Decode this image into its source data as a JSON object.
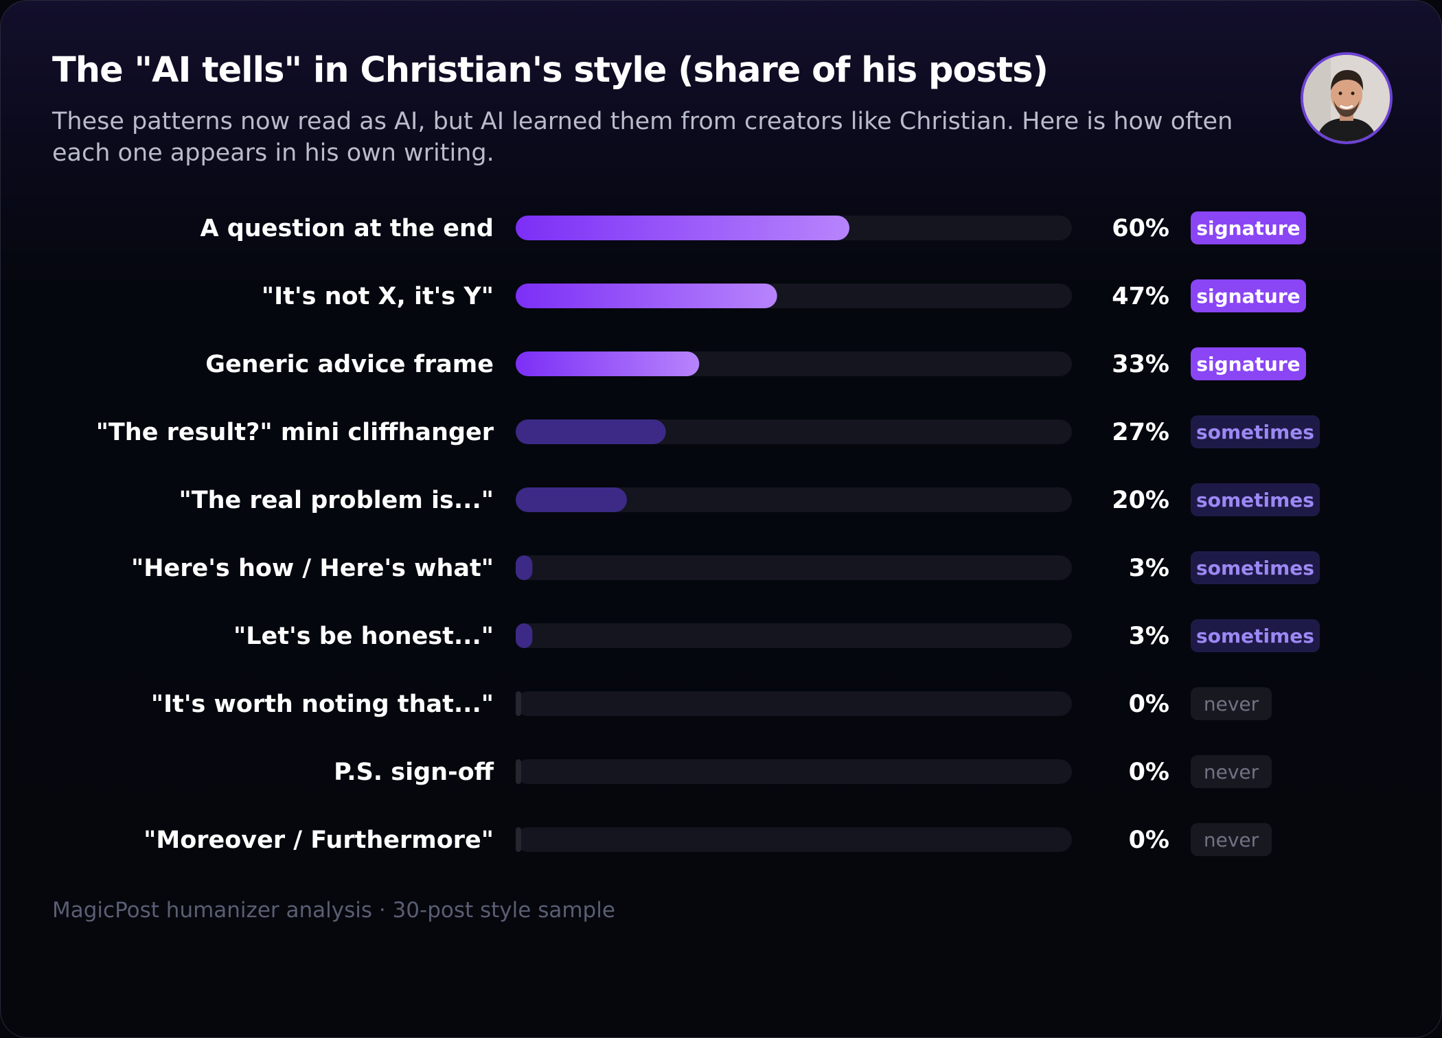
{
  "header": {
    "title": "The \"AI tells\" in Christian's style (share of his posts)",
    "subtitle": "These patterns now read as AI, but AI learned them from creators like Christian. Here is how often each one appears in his own writing."
  },
  "avatar": {
    "icon": "person-portrait-icon"
  },
  "footer": {
    "text": "MagicPost humanizer analysis · 30-post style sample"
  },
  "colors": {
    "signature_bar_start": "#7c2ff6",
    "signature_bar_end": "#b784fc",
    "sometimes_bar": "#3c2a86",
    "never_bar": "#25262f",
    "track": "#14151f",
    "signature_badge_bg": "#8a45f5",
    "signature_badge_text": "#ffffff",
    "sometimes_badge_bg": "#1e1a48",
    "sometimes_badge_text": "#9c88f4",
    "never_badge_bg": "#181920",
    "never_badge_text": "#6f7283",
    "label_text": "#ffffff",
    "value_text": "#ffffff"
  },
  "chart_data": {
    "type": "bar",
    "orientation": "horizontal",
    "xlim": [
      0,
      100
    ],
    "categories": [
      "A question at the end",
      "\"It's not X, it's Y\"",
      "Generic advice frame",
      "\"The result?\" mini cliffhanger",
      "\"The real problem is...\"",
      "\"Here's how / Here's what\"",
      "\"Let's be honest...\"",
      "\"It's worth noting that...\"",
      "P.S. sign-off",
      "\"Moreover / Furthermore\""
    ],
    "values": [
      60,
      47,
      33,
      27,
      20,
      3,
      3,
      0,
      0,
      0
    ],
    "value_labels": [
      "60%",
      "47%",
      "33%",
      "27%",
      "20%",
      "3%",
      "3%",
      "0%",
      "0%",
      "0%"
    ],
    "badges": [
      "signature",
      "signature",
      "signature",
      "sometimes",
      "sometimes",
      "sometimes",
      "sometimes",
      "never",
      "never",
      "never"
    ],
    "grid": false,
    "legend": "none"
  }
}
